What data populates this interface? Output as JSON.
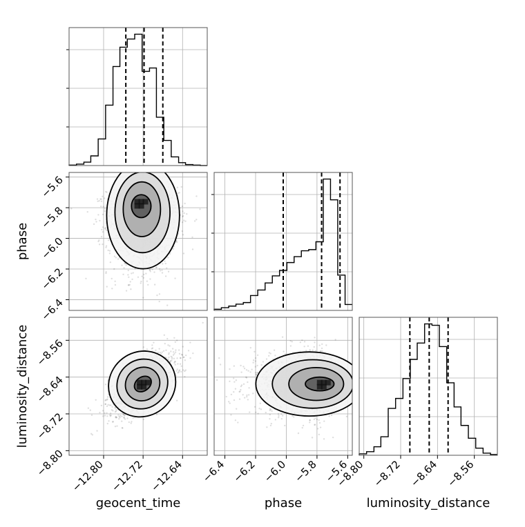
{
  "chart_data": {
    "type": "corner",
    "parameters": [
      "geocent_time",
      "phase",
      "luminosity_distance"
    ],
    "ranges": {
      "geocent_time": [
        -12.87,
        -12.59
      ],
      "phase": [
        -6.47,
        -5.57
      ],
      "luminosity_distance": [
        -8.81,
        -8.51
      ]
    },
    "ticks": {
      "geocent_time": [
        -12.8,
        -12.72,
        -12.64
      ],
      "phase": [
        -6.4,
        -6.2,
        -6.0,
        -5.8,
        -5.6
      ],
      "luminosity_distance": [
        -8.8,
        -8.72,
        -8.64,
        -8.56
      ]
    },
    "tick_labels": {
      "geocent_time": [
        "−12.80",
        "−12.72",
        "−12.64"
      ],
      "phase": [
        "−6.4",
        "−6.2",
        "−6.0",
        "−5.8",
        "−5.6"
      ],
      "luminosity_distance": [
        "−8.80",
        "−8.72",
        "−8.64",
        "−8.56"
      ]
    },
    "quantiles": {
      "geocent_time": [
        -12.755,
        -12.718,
        -12.68
      ],
      "phase": [
        -6.02,
        -5.77,
        -5.65
      ],
      "luminosity_distance": [
        -8.7,
        -8.658,
        -8.617
      ]
    },
    "histograms": {
      "geocent_time": {
        "edges": [
          -12.87,
          -12.855,
          -12.84,
          -12.826,
          -12.811,
          -12.796,
          -12.781,
          -12.767,
          -12.752,
          -12.737,
          -12.722,
          -12.707,
          -12.693,
          -12.678,
          -12.663,
          -12.648,
          -12.634,
          -12.619,
          -12.604,
          -12.59
        ],
        "counts": [
          1,
          3,
          7,
          20,
          55,
          125,
          205,
          245,
          262,
          272,
          195,
          202,
          100,
          52,
          18,
          6,
          2,
          1,
          0
        ]
      },
      "phase": {
        "edges": [
          -6.47,
          -6.423,
          -6.375,
          -6.328,
          -6.28,
          -6.233,
          -6.186,
          -6.138,
          -6.091,
          -6.044,
          -5.996,
          -5.949,
          -5.902,
          -5.854,
          -5.807,
          -5.759,
          -5.712,
          -5.665,
          -5.617,
          -5.57
        ],
        "counts": [
          3,
          7,
          11,
          16,
          20,
          38,
          52,
          70,
          88,
          102,
          122,
          137,
          152,
          155,
          175,
          335,
          282,
          90,
          15
        ]
      },
      "luminosity_distance": {
        "edges": [
          -8.81,
          -8.794,
          -8.778,
          -8.763,
          -8.747,
          -8.731,
          -8.715,
          -8.699,
          -8.684,
          -8.668,
          -8.652,
          -8.636,
          -8.62,
          -8.604,
          -8.589,
          -8.573,
          -8.557,
          -8.541,
          -8.525,
          -8.51
        ],
        "counts": [
          2,
          5,
          12,
          26,
          66,
          80,
          108,
          135,
          158,
          185,
          183,
          153,
          102,
          68,
          42,
          24,
          10,
          3,
          1
        ]
      }
    },
    "scatter_2d": [
      {
        "x": "geocent_time",
        "y": "phase",
        "center": [
          -12.72,
          -5.85
        ],
        "spread": [
          0.036,
          0.17
        ],
        "corr": 0.0,
        "peak": [
          -12.725,
          -5.77
        ]
      },
      {
        "x": "geocent_time",
        "y": "luminosity_distance",
        "center": [
          -12.722,
          -8.655
        ],
        "spread": [
          0.034,
          0.034
        ],
        "corr": 0.6,
        "peak": [
          -12.72,
          -8.655
        ]
      },
      {
        "x": "phase",
        "y": "luminosity_distance",
        "center": [
          -5.85,
          -8.655
        ],
        "spread": [
          0.17,
          0.034
        ],
        "corr": 0.0,
        "peak": [
          -5.76,
          -8.655
        ]
      }
    ],
    "contour_levels": [
      0.12,
      0.39,
      0.68,
      0.86
    ],
    "grid": true
  }
}
